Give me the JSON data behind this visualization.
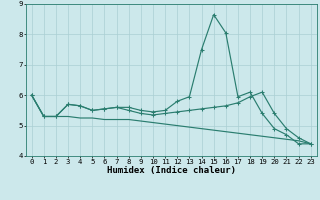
{
  "xlabel": "Humidex (Indice chaleur)",
  "x": [
    0,
    1,
    2,
    3,
    4,
    5,
    6,
    7,
    8,
    9,
    10,
    11,
    12,
    13,
    14,
    15,
    16,
    17,
    18,
    19,
    20,
    21,
    22,
    23
  ],
  "line1": [
    6.0,
    5.3,
    5.3,
    5.7,
    5.65,
    5.5,
    5.55,
    5.6,
    5.6,
    5.5,
    5.45,
    5.5,
    5.8,
    5.95,
    7.5,
    8.65,
    8.05,
    5.95,
    6.1,
    5.4,
    4.9,
    4.7,
    4.4,
    4.4
  ],
  "line2": [
    6.0,
    5.3,
    5.3,
    5.7,
    5.65,
    5.5,
    5.55,
    5.6,
    5.5,
    5.4,
    5.35,
    5.4,
    5.45,
    5.5,
    5.55,
    5.6,
    5.65,
    5.75,
    5.95,
    6.1,
    5.4,
    4.9,
    4.6,
    4.4
  ],
  "line3": [
    6.0,
    5.3,
    5.3,
    5.3,
    5.25,
    5.25,
    5.2,
    5.2,
    5.2,
    5.15,
    5.1,
    5.05,
    5.0,
    4.95,
    4.9,
    4.85,
    4.8,
    4.75,
    4.7,
    4.65,
    4.6,
    4.55,
    4.5,
    4.4
  ],
  "ylim": [
    4,
    9
  ],
  "xlim": [
    -0.5,
    23.5
  ],
  "yticks": [
    4,
    5,
    6,
    7,
    8,
    9
  ],
  "xticks": [
    0,
    1,
    2,
    3,
    4,
    5,
    6,
    7,
    8,
    9,
    10,
    11,
    12,
    13,
    14,
    15,
    16,
    17,
    18,
    19,
    20,
    21,
    22,
    23
  ],
  "line_color": "#2a7d6f",
  "bg_color": "#cce8eb",
  "grid_color": "#aacfd4",
  "tick_fontsize": 5.2,
  "label_fontsize": 6.5
}
